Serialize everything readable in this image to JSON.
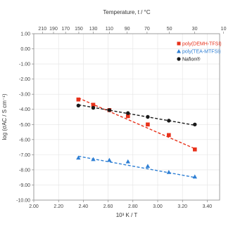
{
  "chart_data": {
    "type": "scatter",
    "title": "",
    "xlabel": "10³ K / T",
    "ylabel": "log (σAC / S cm⁻¹)",
    "top_xlabel": "Temperature, t / °C",
    "xlim": [
      2.0,
      3.5
    ],
    "ylim": [
      -10.0,
      1.0
    ],
    "grid": true,
    "legend_position": "top-right",
    "x_ticks": [
      "2.00",
      "2.20",
      "2.40",
      "2.60",
      "2.80",
      "3.00",
      "3.20",
      "3.40"
    ],
    "y_ticks": [
      "1.00",
      "0.00",
      "-1.00",
      "-2.00",
      "-3.00",
      "-4.00",
      "-5.00",
      "-6.00",
      "-7.00",
      "-8.00",
      "-9.00",
      "-10.00"
    ],
    "top_ticks": [
      "210",
      "190",
      "170",
      "150",
      "130",
      "110",
      "90",
      "70",
      "50",
      "30",
      "10"
    ],
    "series": [
      {
        "name": "poly(DEMH-TFSI)",
        "color": "#e8311a",
        "marker": "square",
        "x": [
          2.36,
          2.48,
          2.61,
          2.76,
          2.92,
          3.09,
          3.3
        ],
        "y": [
          -3.35,
          -3.7,
          -4.05,
          -4.45,
          -5.0,
          -5.7,
          -6.65
        ],
        "fit": [
          [
            2.36,
            -3.25
          ],
          [
            3.3,
            -6.6
          ]
        ]
      },
      {
        "name": "poly(TEA-MTFSI)",
        "color": "#2e7fd4",
        "marker": "triangle",
        "x": [
          2.36,
          2.48,
          2.61,
          2.76,
          2.92,
          3.09,
          3.3
        ],
        "y": [
          -7.2,
          -7.3,
          -7.35,
          -7.45,
          -7.75,
          -8.15,
          -8.45
        ],
        "fit": [
          [
            2.36,
            -7.1
          ],
          [
            3.3,
            -8.5
          ]
        ]
      },
      {
        "name": "Nafion®",
        "color": "#1a1a1a",
        "marker": "circle",
        "x": [
          2.36,
          2.48,
          2.61,
          2.76,
          2.92,
          3.09,
          3.3
        ],
        "y": [
          -3.75,
          -3.9,
          -4.05,
          -4.25,
          -4.5,
          -4.75,
          -5.0
        ],
        "fit": [
          [
            2.36,
            -3.7
          ],
          [
            3.3,
            -5.05
          ]
        ]
      }
    ]
  }
}
